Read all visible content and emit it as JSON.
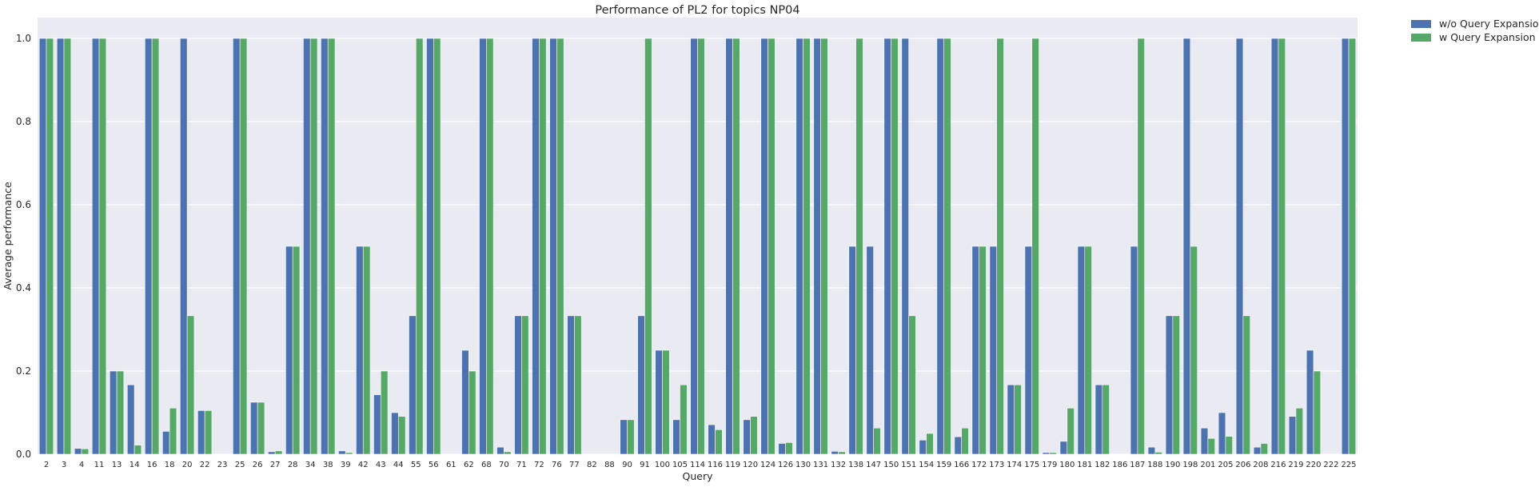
{
  "chart_data": {
    "type": "bar",
    "title": "Performance of PL2 for topics NP04",
    "xlabel": "Query",
    "ylabel": "Average performance",
    "ylim": [
      0,
      1.05
    ],
    "yticks": [
      "0.0",
      "0.2",
      "0.4",
      "0.6",
      "0.8",
      "1.0"
    ],
    "grid": true,
    "legend_position": "outside-top-right",
    "categories": [
      "2",
      "3",
      "4",
      "11",
      "13",
      "14",
      "16",
      "18",
      "20",
      "22",
      "23",
      "25",
      "26",
      "27",
      "28",
      "34",
      "38",
      "39",
      "42",
      "43",
      "44",
      "55",
      "56",
      "61",
      "62",
      "68",
      "70",
      "71",
      "72",
      "76",
      "77",
      "82",
      "88",
      "90",
      "91",
      "100",
      "105",
      "114",
      "116",
      "119",
      "120",
      "124",
      "126",
      "130",
      "131",
      "132",
      "138",
      "147",
      "150",
      "151",
      "154",
      "159",
      "166",
      "172",
      "173",
      "174",
      "175",
      "179",
      "180",
      "181",
      "182",
      "186",
      "187",
      "188",
      "190",
      "198",
      "201",
      "205",
      "206",
      "208",
      "216",
      "219",
      "220",
      "222",
      "225"
    ],
    "series": [
      {
        "name": "w/o Query Expansion",
        "color": "#4c72b0",
        "values": [
          1.0,
          1.0,
          0.014,
          1.0,
          0.2,
          0.167,
          1.0,
          0.055,
          1.0,
          0.105,
          0.0,
          1.0,
          0.125,
          0.006,
          0.5,
          1.0,
          1.0,
          0.008,
          0.5,
          0.143,
          0.1,
          0.333,
          1.0,
          0.0,
          0.25,
          1.0,
          0.017,
          0.333,
          1.0,
          1.0,
          0.333,
          0.0,
          0.0,
          0.083,
          0.333,
          0.25,
          0.083,
          1.0,
          0.071,
          1.0,
          0.083,
          1.0,
          0.026,
          1.0,
          1.0,
          0.007,
          0.5,
          0.5,
          1.0,
          1.0,
          0.034,
          1.0,
          0.042,
          0.5,
          0.5,
          0.167,
          0.5,
          0.004,
          0.031,
          0.5,
          0.167,
          0.0,
          0.5,
          0.017,
          0.333,
          1.0,
          0.063,
          0.1,
          1.0,
          0.017,
          1.0,
          0.091,
          0.25,
          0.0,
          1.0
        ]
      },
      {
        "name": "w Query Expansion",
        "color": "#55a868",
        "values": [
          1.0,
          1.0,
          0.013,
          1.0,
          0.2,
          0.022,
          1.0,
          0.111,
          0.333,
          0.105,
          0.0,
          1.0,
          0.125,
          0.008,
          0.5,
          1.0,
          1.0,
          0.004,
          0.5,
          0.2,
          0.091,
          1.0,
          1.0,
          0.0,
          0.2,
          1.0,
          0.006,
          0.333,
          1.0,
          1.0,
          0.333,
          0.0,
          0.0,
          0.083,
          1.0,
          0.25,
          0.167,
          1.0,
          0.059,
          1.0,
          0.091,
          1.0,
          0.028,
          1.0,
          1.0,
          0.006,
          1.0,
          0.063,
          1.0,
          0.333,
          0.05,
          1.0,
          0.063,
          0.5,
          1.0,
          0.167,
          1.0,
          0.004,
          0.111,
          0.5,
          0.167,
          0.0,
          1.0,
          0.005,
          0.333,
          0.5,
          0.038,
          0.043,
          0.333,
          0.026,
          1.0,
          0.111,
          0.2,
          0.0,
          1.0
        ]
      }
    ]
  }
}
